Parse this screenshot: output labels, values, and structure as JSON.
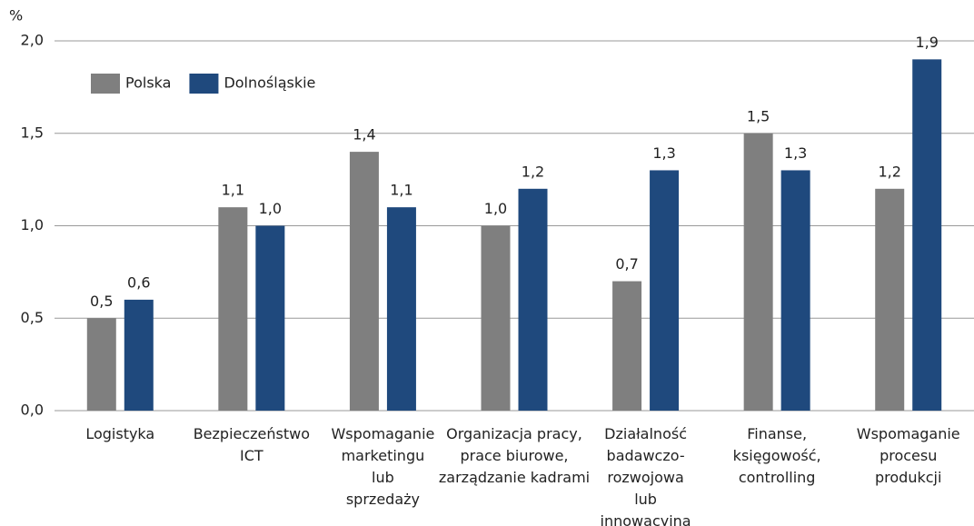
{
  "chart_data": {
    "type": "bar",
    "y_unit_label": "%",
    "categories": [
      "Logistyka",
      "Bezpieczeństwo\nICT",
      "Wspomaganie\nmarketingu\nlub\nsprzedaży",
      "Organizacja pracy,\nprace biurowe,\nzarządzanie kadrami",
      "Działalność\nbadawczo-\nrozwojowa\nlub\ninnowacyjna",
      "Finanse,\nksięgowość,\ncontrolling",
      "Wspomaganie\nprocesu\nprodukcji"
    ],
    "series": [
      {
        "name": "Polska",
        "color": "#7f7f7f",
        "values": [
          0.5,
          1.1,
          1.4,
          1.0,
          0.7,
          1.5,
          1.2
        ],
        "value_labels": [
          "0,5",
          "1,1",
          "1,4",
          "1,0",
          "0,7",
          "1,5",
          "1,2"
        ]
      },
      {
        "name": "Dolnośląskie",
        "color": "#1f497d",
        "values": [
          0.6,
          1.0,
          1.1,
          1.2,
          1.3,
          1.3,
          1.9
        ],
        "value_labels": [
          "0,6",
          "1,0",
          "1,1",
          "1,2",
          "1,3",
          "1,3",
          "1,9"
        ]
      }
    ],
    "ylim": [
      0,
      2.0
    ],
    "yticks": [
      {
        "value": 0,
        "label": "0,0"
      },
      {
        "value": 0.5,
        "label": "0,5"
      },
      {
        "value": 1.0,
        "label": "1,0"
      },
      {
        "value": 1.5,
        "label": "1,5"
      },
      {
        "value": 2.0,
        "label": "2,0"
      }
    ],
    "grid": true,
    "legend": "top-left"
  }
}
